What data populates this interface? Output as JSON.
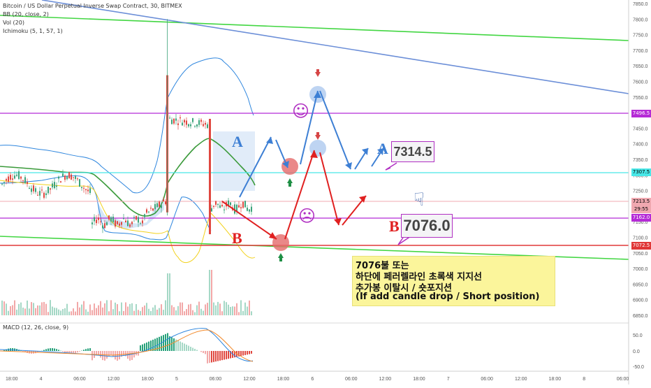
{
  "chart_data": {
    "type": "candlestick",
    "title": "Bitcoin / US Dollar Perpetual Inverse Swap Contract, 30, BITMEX",
    "indicators": [
      "BB (20, close, 2)",
      "Vol (20)",
      "Ichimoku (5, 1, 57, 1)"
    ],
    "x_ticks": [
      "18:00",
      "4",
      "06:00",
      "12:00",
      "18:00",
      "5",
      "06:00",
      "12:00",
      "18:00",
      "6",
      "06:00",
      "12:00",
      "18:00",
      "7",
      "06:00",
      "12:00",
      "18:00",
      "8",
      "06:00"
    ],
    "y_ticks": [
      "7850.0",
      "7800.0",
      "7750.0",
      "7700.0",
      "7650.0",
      "7600.0",
      "7550.0",
      "7500.0",
      "7450.0",
      "7400.0",
      "7350.0",
      "7300.0",
      "7250.0",
      "7200.0",
      "7150.0",
      "7100.0",
      "7050.0",
      "7000.0",
      "6950.0",
      "6900.0",
      "6850.0"
    ],
    "y_range": [
      6840,
      7860
    ],
    "price_tags": [
      {
        "label": "7496.5",
        "value": 7496.5,
        "color": "#b52bd6"
      },
      {
        "label": "7307.5",
        "value": 7307.5,
        "color": "#48e8e8"
      },
      {
        "label": "7213.5",
        "value": 7213.5,
        "color": "#f0a8b0"
      },
      {
        "label": "29:55",
        "value": 7190,
        "color": "#f0a8b0"
      },
      {
        "label": "7162.0",
        "value": 7162.0,
        "color": "#b52bd6"
      },
      {
        "label": "7072.5",
        "value": 7072.5,
        "color": "#e03838"
      }
    ],
    "labels": {
      "a_letter": "A",
      "b_letter": "B",
      "a_target": "7314.5",
      "b_target": "7076.0"
    },
    "note_lines": [
      "7076불 또는",
      "하단에 페러렐라인 초록색 지지선",
      "추가봉 이탈시 / 숏포지션",
      "(If add candle drop / Short position)"
    ],
    "macd": {
      "label": "MACD (12, 26, close, 9)",
      "y_ticks": [
        "50.0",
        "0.0",
        "-50.0"
      ]
    }
  },
  "emojis": {
    "happy": "☺",
    "sad": "☹",
    "pointer": "☟"
  }
}
